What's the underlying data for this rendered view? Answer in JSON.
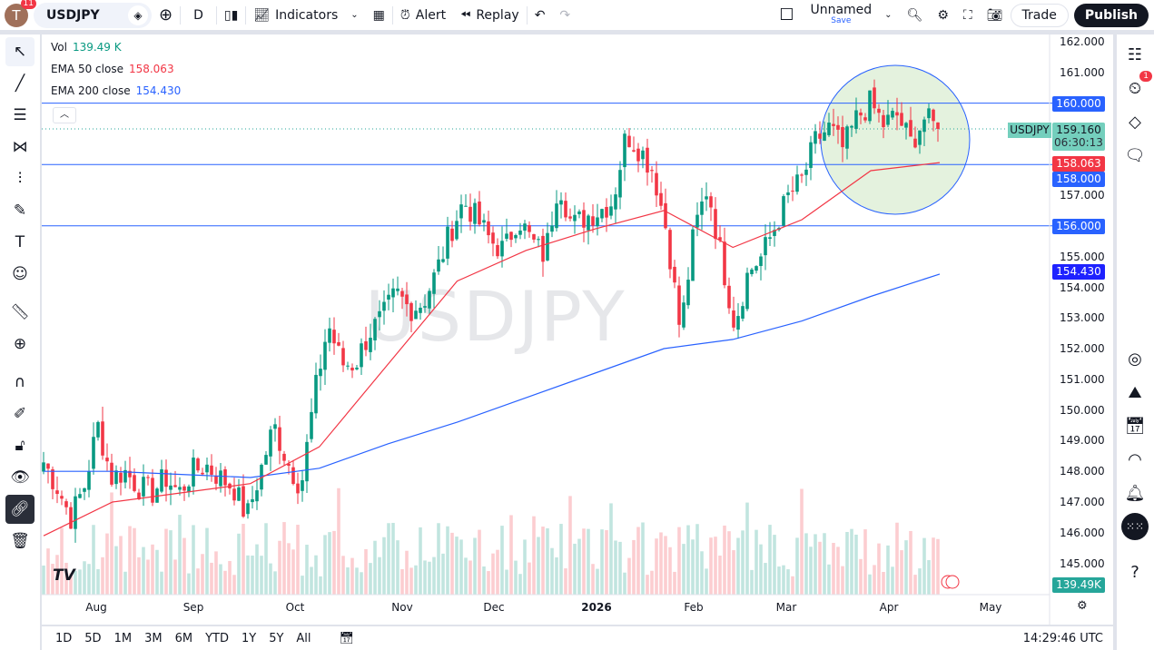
{
  "header": {
    "avatar_letter": "T",
    "notifications": "11",
    "symbol": "USDJPY",
    "interval": "D",
    "indicators_label": "Indicators",
    "alert_label": "Alert",
    "replay_label": "Replay",
    "layout_name": "Unnamed",
    "save_label": "Save",
    "trade_label": "Trade",
    "publish_label": "Publish"
  },
  "legend": {
    "vol_label": "Vol",
    "vol_value": "139.49 K",
    "ema50_label": "EMA 50 close",
    "ema50_value": "158.063",
    "ema200_label": "EMA 200 close",
    "ema200_value": "154.430"
  },
  "watermark": "USDJPY",
  "price_axis": {
    "ticks": [
      "162.000",
      "161.000",
      "157.000",
      "155.000",
      "154.000",
      "153.000",
      "152.000",
      "151.000",
      "150.000",
      "149.000",
      "148.000",
      "147.000",
      "146.000",
      "145.000"
    ],
    "labels": {
      "level_160": "160.000",
      "level_158": "158.000",
      "level_156": "156.000",
      "ema50": "158.063",
      "ema200": "154.430",
      "symbol": "USDJPY",
      "last_price": "159.160",
      "countdown": "06:30:13",
      "volume": "139.49K"
    }
  },
  "time_axis": [
    "Aug",
    "Sep",
    "Oct",
    "Nov",
    "Dec",
    "2026",
    "Jan",
    "Feb",
    "Mar",
    "Apr",
    "May"
  ],
  "bottom_bar": {
    "ranges": [
      "1D",
      "5D",
      "1M",
      "3M",
      "6M",
      "YTD",
      "1Y",
      "5Y",
      "All"
    ],
    "clock": "14:29:46 UTC"
  },
  "right_bar": {
    "alerts_badge": "1"
  },
  "colors": {
    "up": "#089981",
    "down": "#f23645",
    "ema50": "#f23645",
    "ema200": "#2962ff",
    "level": "#2962ff",
    "circle_fill": "#d8ecd0"
  },
  "chart_data": {
    "type": "candlestick",
    "symbol": "USDJPY",
    "interval": "D",
    "ylim": [
      145,
      162.3
    ],
    "horizontal_levels": [
      160,
      158,
      156
    ],
    "last_price": 159.16,
    "closes_approx": [
      148.3,
      147.5,
      146.5,
      147.5,
      149.5,
      147.8,
      148,
      147.5,
      147.3,
      147.8,
      147.3,
      148,
      148.2,
      147.8,
      147.5,
      146.5,
      148,
      149.5,
      148.3,
      147.5,
      150.5,
      152.8,
      151.5,
      151.5,
      152.5,
      153,
      153.8,
      153.3,
      153.5,
      154.5,
      155.8,
      156.8,
      156.2,
      155.5,
      155.2,
      156.3,
      155.5,
      155,
      157.5,
      156,
      156.3,
      156.5,
      156.8,
      159,
      158.5,
      157.8,
      155.8,
      152.5,
      155.8,
      157.3,
      155,
      152.8,
      154.5,
      155,
      156,
      157,
      157.5,
      158.8,
      159.2,
      158.5,
      159.5,
      160,
      159.3,
      159.6,
      158.7,
      159.5,
      159.16
    ],
    "ema50_approx": [
      145.9,
      147,
      147.3,
      147.6,
      148.8,
      151.5,
      154.2,
      155.2,
      155.9,
      156.5,
      155.3,
      156.2,
      157.8,
      158.063
    ],
    "ema200_approx": [
      148,
      148,
      147.9,
      147.8,
      148.1,
      148.9,
      149.6,
      150.4,
      151.2,
      152,
      152.3,
      152.9,
      153.7,
      154.43
    ],
    "volume_last": "139.49K"
  }
}
